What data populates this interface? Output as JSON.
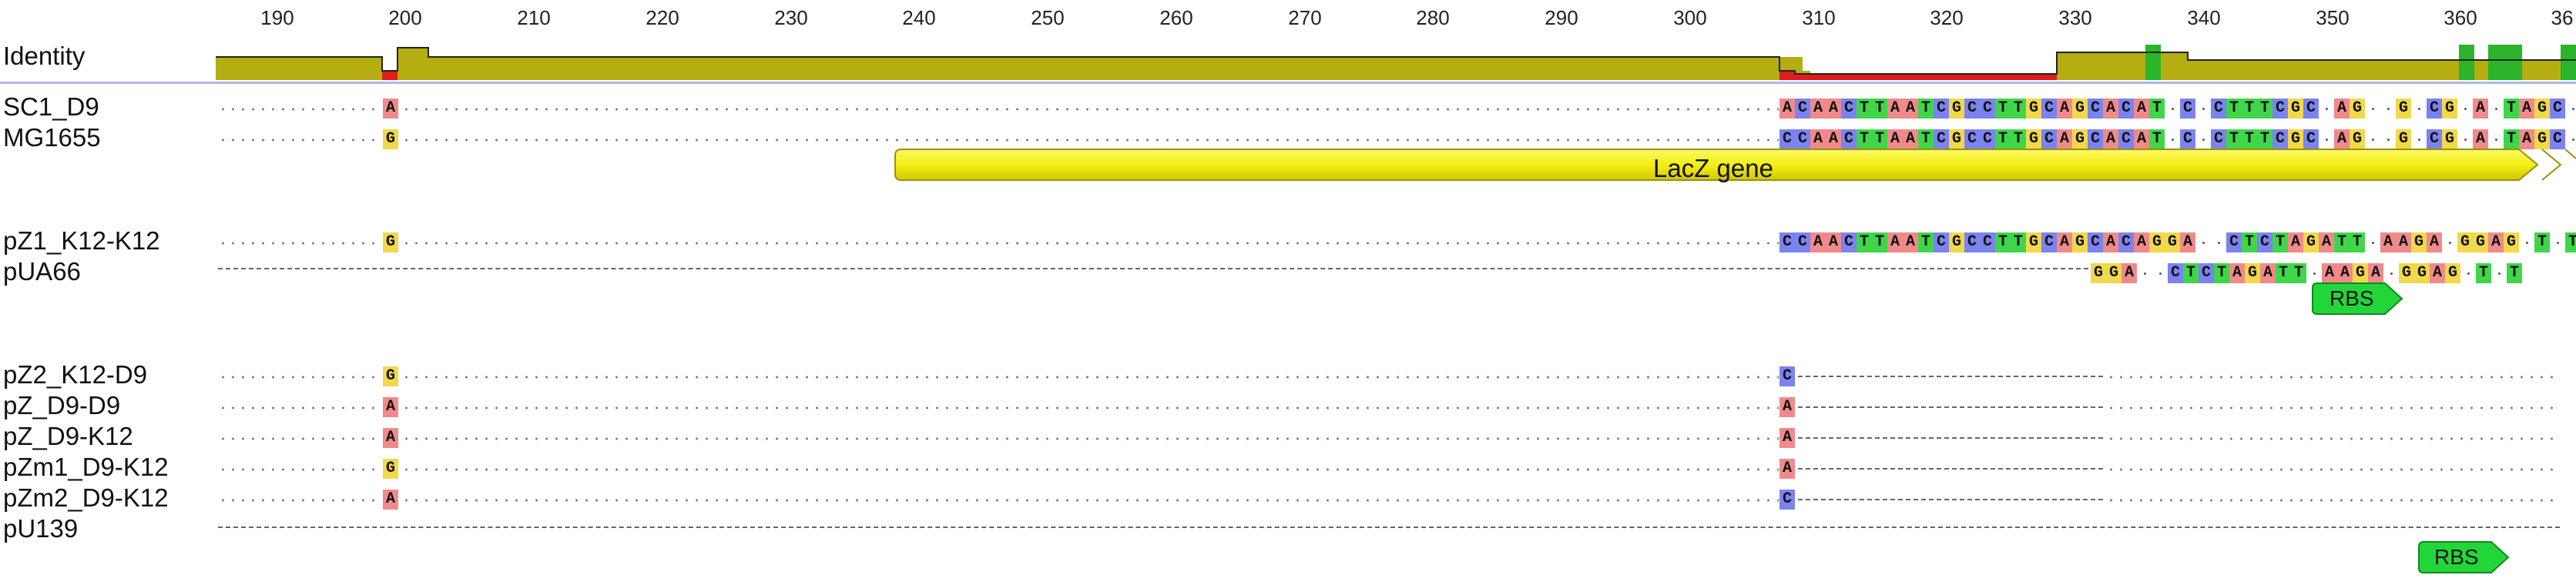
{
  "ruler": {
    "ticks": [
      "190",
      "200",
      "210",
      "220",
      "230",
      "240",
      "250",
      "260",
      "270",
      "280",
      "290",
      "300",
      "310",
      "320",
      "330",
      "340",
      "350",
      "360",
      "36"
    ]
  },
  "identity": {
    "label": "Identity",
    "bars": [
      {
        "color": "#b5ad12",
        "level": 0.5
      },
      {
        "color": "#e21b1b",
        "level": 0.18
      },
      {
        "color": "#b5ad12",
        "level": 0.8
      },
      {
        "color": "#b5ad12",
        "level": 0.5
      },
      {
        "color": "#e21b1b",
        "level": 0.18
      },
      {
        "color": "#e21b1b",
        "level": 0.1
      },
      {
        "color": "#b5ad12",
        "level": 0.6
      },
      {
        "color": "#2ab52a",
        "level": 0.95
      },
      {
        "color": "#b5ad12",
        "level": 0.45
      }
    ]
  },
  "rows": {
    "sc1_d9": {
      "label": "SC1_D9",
      "pos200": "A",
      "tail": "ACAACTTAATCGCCTTGCAGCACAT-C-CTTTCGC-AG--G-CG-A-TAGC-A--AGC"
    },
    "mg1655": {
      "label": "MG1655",
      "pos200": "G",
      "tail": "CCAACTTAATCGCCTTGCAGCACAT-C-CTTTCGC-AG--G-CG-A-TAGC-A--GGC"
    },
    "pz1_k12_k12": {
      "label": "pZ1_K12-K12",
      "pos200": "G",
      "tail": "CCAACTTAATCGCCTTGCAGCACAGGA--CTCTAGATT-AAGA-GGAG-T-T"
    },
    "pua66": {
      "label": "pUA66",
      "tail": "GGA--CTCTAGATT-AAGA-GGAG-T-T"
    },
    "pz2_k12_d9": {
      "label": "pZ2_K12-D9",
      "pos200": "G",
      "pos306": "C"
    },
    "pz_d9_d9": {
      "label": "pZ_D9-D9",
      "pos200": "A",
      "pos306": "A"
    },
    "pz_d9_k12": {
      "label": "pZ_D9-K12",
      "pos200": "A",
      "pos306": "A"
    },
    "pzm1_d9_k12": {
      "label": "pZm1_D9-K12",
      "pos200": "G",
      "pos306": "A"
    },
    "pzm2_d9_k12": {
      "label": "pZm2_D9-K12",
      "pos200": "A",
      "pos306": "C"
    },
    "pu139": {
      "label": "pU139"
    }
  },
  "annotations": {
    "lacz": {
      "label": "LacZ gene",
      "color": "#f5ef12"
    },
    "rbs1": {
      "label": "RBS",
      "color": "#22d63a"
    },
    "rbs2": {
      "label": "RBS",
      "color": "#22d63a"
    }
  }
}
